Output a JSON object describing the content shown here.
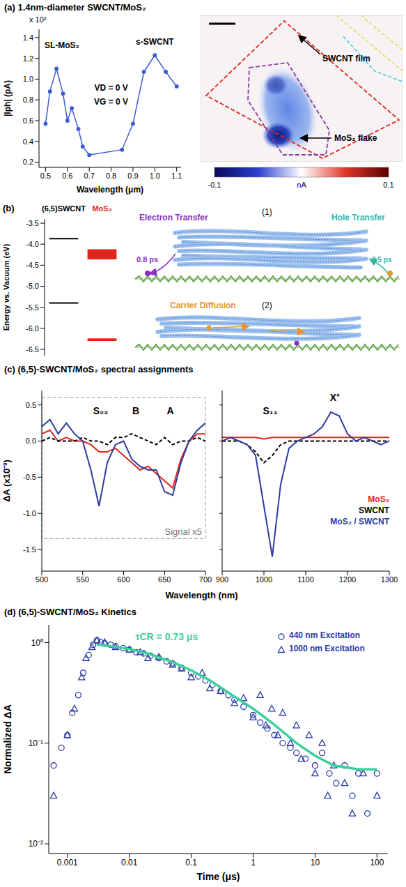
{
  "chart_data": [
    {
      "type": "line",
      "title": "(a) 1.4nm-diameter SWCNT/MoS₂",
      "x_label": "Wavelength (μm)",
      "y_label": "|Iph| (pA)",
      "y_multiplier": "x 10²",
      "x": [
        0.5,
        0.52,
        0.55,
        0.58,
        0.6,
        0.62,
        0.65,
        0.67,
        0.7,
        0.85,
        0.9,
        0.95,
        1.0,
        1.05,
        1.1
      ],
      "values": [
        0.57,
        0.88,
        1.1,
        0.86,
        0.6,
        0.72,
        0.52,
        0.35,
        0.27,
        0.32,
        0.57,
        1.07,
        1.23,
        1.07,
        0.93
      ],
      "color": "#3b5bd6",
      "marker": "circle",
      "xlim": [
        0.47,
        1.12
      ],
      "xticks": [
        0.5,
        0.6,
        0.7,
        0.8,
        0.9,
        {
          "value": 1,
          "label": "1.0"
        },
        1.1
      ],
      "ylim": [
        0.15,
        1.48
      ],
      "yticks": [
        0.2,
        0.4,
        0.6,
        0.8,
        {
          "value": 1,
          "label": "1.0"
        },
        1.2,
        1.4
      ],
      "annotations": [
        {
          "text": "SL-MoS₂",
          "x": 0.575,
          "y": 1.33
        },
        {
          "text": "s-SWCNT",
          "x": 1.0,
          "y": 1.36
        },
        {
          "text": "VD = 0 V",
          "x": 0.8,
          "y": 0.92
        },
        {
          "text": "VG = 0 V",
          "x": 0.8,
          "y": 0.78
        }
      ]
    },
    {
      "type": "energy_levels",
      "title": "(b)",
      "y_label": "Energy vs. Vacuum (eV)",
      "tick_labels": "y",
      "ylim": [
        -6.65,
        -3.4
      ],
      "yticks": [
        -3.5,
        {
          "value": -4,
          "label": "-4.0"
        },
        -4.5,
        {
          "value": -5,
          "label": "-5.0"
        },
        -5.5,
        {
          "value": -6,
          "label": "-6.0"
        },
        -6.5
      ],
      "series": [
        {
          "name": "(6,5)SWCNT",
          "color": "#000000",
          "levels": [
            [
              -3.87,
              -3.87
            ],
            [
              -5.4,
              -5.4
            ]
          ]
        },
        {
          "name": "MoS₂",
          "color": "#e0261b",
          "levels": [
            [
              -4.36,
              -4.12
            ],
            [
              -6.3,
              -6.24
            ]
          ]
        }
      ]
    },
    {
      "type": "line",
      "title": "(c) (6,5)-SWCNT/MoS₂ spectral assignments",
      "x_label": "Wavelength (nm)",
      "y_label": "ΔA (x10⁻³)",
      "x": [
        500,
        510,
        520,
        530,
        540,
        550,
        560,
        570,
        580,
        590,
        600,
        610,
        620,
        630,
        640,
        650,
        660,
        670,
        680,
        690,
        700
      ],
      "series": [
        {
          "color": "#e0261b",
          "values": [
            0.1,
            0.15,
            0.0,
            0.05,
            0.0,
            0.0,
            -0.05,
            -0.15,
            -0.15,
            -0.1,
            -0.2,
            -0.3,
            -0.4,
            -0.35,
            -0.45,
            -0.55,
            -0.65,
            -0.25,
            0.0,
            0.1,
            0.1
          ]
        },
        {
          "color": "#000000",
          "line_style": "dashed",
          "values": [
            0.0,
            0.05,
            0.0,
            0.0,
            0.0,
            0.05,
            0.0,
            0.0,
            -0.05,
            0.05,
            0.05,
            0.1,
            0.05,
            0.0,
            -0.05,
            0.05,
            -0.05,
            0.0,
            0.0,
            0.05,
            0.0
          ]
        },
        {
          "color": "#2c3c9e",
          "values": [
            0.2,
            0.3,
            0.1,
            0.25,
            0.1,
            0.0,
            -0.4,
            -0.9,
            -0.3,
            -0.05,
            0.0,
            -0.25,
            -0.35,
            -0.4,
            -0.4,
            -0.7,
            -0.75,
            -0.3,
            0.0,
            0.15,
            0.25
          ]
        }
      ],
      "xlim": [
        500,
        700
      ],
      "xticks": [
        500,
        550,
        600,
        650,
        700
      ],
      "ylim": [
        -1.8,
        0.7
      ],
      "yticks": [
        -1.5,
        {
          "value": -1,
          "label": "-1.0"
        },
        -0.5,
        {
          "value": 0,
          "label": "0.0"
        },
        0.5
      ],
      "annotations": [
        {
          "text": "S₂₂",
          "x": 572,
          "y": 0.42
        },
        {
          "text": "B",
          "x": 615,
          "y": 0.42
        },
        {
          "text": "A",
          "x": 657,
          "y": 0.42
        }
      ],
      "box": {
        "x": [
          500,
          700
        ],
        "y": [
          -1.35,
          0.6
        ],
        "label": "Signal x5"
      }
    },
    {
      "type": "line",
      "tick_labels": "x",
      "legend": "lower right",
      "x": [
        900,
        920,
        940,
        960,
        980,
        1000,
        1020,
        1040,
        1060,
        1080,
        1100,
        1120,
        1140,
        1160,
        1180,
        1200,
        1220,
        1240,
        1260,
        1280,
        1300
      ],
      "series": [
        {
          "name": "MoS₂",
          "color": "#e0261b",
          "values": [
            0.05,
            0.05,
            0.05,
            0.05,
            0.05,
            0.03,
            0.05,
            0.05,
            0.05,
            0.05,
            0.05,
            0.05,
            0.05,
            0.05,
            0.05,
            0.05,
            0.05,
            0.05,
            0.05,
            0.05,
            0.05
          ]
        },
        {
          "name": "SWCNT",
          "color": "#000000",
          "line_style": "dashed",
          "values": [
            0.0,
            0.0,
            0.0,
            -0.05,
            -0.15,
            -0.3,
            -0.2,
            -0.05,
            0.0,
            0.0,
            0.0,
            0.0,
            0.0,
            0.0,
            0.0,
            0.0,
            0.0,
            0.0,
            0.0,
            0.0,
            0.0
          ]
        },
        {
          "name": "MoS₂ / SWCNT",
          "color": "#2c3c9e",
          "values": [
            0.0,
            0.05,
            0.0,
            -0.05,
            -0.2,
            -0.9,
            -1.6,
            -0.6,
            -0.1,
            0.0,
            0.05,
            0.1,
            0.2,
            0.4,
            0.35,
            0.1,
            0.0,
            0.05,
            0.0,
            -0.05,
            0.0
          ]
        }
      ],
      "xlim": [
        900,
        1300
      ],
      "xticks": [
        900,
        1000,
        1100,
        1200,
        1300
      ],
      "ylim": [
        -1.8,
        0.7
      ],
      "yticks": [
        -1.5,
        {
          "value": -1,
          "label": "-1.0"
        },
        -0.5,
        {
          "value": 0,
          "label": "0.0"
        },
        0.5
      ],
      "annotations": [
        {
          "text": "S₁₁",
          "x": 1015,
          "y": 0.42
        },
        {
          "text": "X⁺",
          "x": 1170,
          "y": 0.6
        }
      ]
    },
    {
      "type": "scatter",
      "title": "(d) (6,5)-SWCNT/MoS₂ Kinetics",
      "x_label": "Time (μs)",
      "y_label": "Normalized ΔA",
      "log": true,
      "legend": "upper right",
      "xlim": [
        0.0005,
        150
      ],
      "xticks": [
        0.001,
        0.01,
        0.1,
        1,
        10,
        100
      ],
      "ylim": [
        0.008,
        1.5
      ],
      "yticks": [
        {
          "value": 0.01,
          "label": "10⁻²"
        },
        {
          "value": 0.1,
          "label": "10⁻¹"
        },
        {
          "value": 1,
          "label": "10⁰"
        }
      ],
      "series": [
        {
          "name": "440 nm Excitation",
          "color": "#2a3aa8",
          "marker": "circle",
          "x": [
            0.0006,
            0.0008,
            0.001,
            0.0012,
            0.0015,
            0.0018,
            0.0022,
            0.0026,
            0.003,
            0.0035,
            0.004,
            0.005,
            0.006,
            0.008,
            0.01,
            0.013,
            0.017,
            0.022,
            0.03,
            0.04,
            0.05,
            0.07,
            0.1,
            0.13,
            0.17,
            0.22,
            0.3,
            0.4,
            0.5,
            0.7,
            1,
            1.3,
            1.7,
            2.2,
            3,
            4,
            5,
            7,
            10,
            13,
            17,
            22,
            30,
            40,
            50,
            70,
            100
          ],
          "values": [
            0.06,
            0.09,
            0.12,
            0.2,
            0.3,
            0.5,
            0.75,
            0.95,
            1.05,
            1.0,
            0.98,
            0.95,
            0.92,
            0.88,
            0.85,
            0.8,
            0.78,
            0.74,
            0.7,
            0.65,
            0.62,
            0.56,
            0.5,
            0.46,
            0.42,
            0.38,
            0.33,
            0.3,
            0.27,
            0.23,
            0.19,
            0.16,
            0.14,
            0.12,
            0.1,
            0.09,
            0.08,
            0.07,
            0.06,
            0.08,
            0.05,
            0.04,
            0.06,
            0.03,
            0.05,
            0.02,
            0.05
          ]
        },
        {
          "name": "1000 nm Excitation",
          "color": "#2a3aa8",
          "marker": "triangle",
          "x": [
            0.0006,
            0.001,
            0.0013,
            0.0017,
            0.002,
            0.0025,
            0.003,
            0.004,
            0.006,
            0.01,
            0.015,
            0.02,
            0.03,
            0.05,
            0.07,
            0.1,
            0.15,
            0.2,
            0.3,
            0.5,
            0.7,
            1,
            1.3,
            1.6,
            2,
            2.5,
            3,
            4,
            5,
            6,
            8,
            10,
            13,
            16,
            20,
            30,
            40,
            60,
            100
          ],
          "values": [
            0.03,
            0.12,
            0.22,
            0.45,
            0.7,
            0.9,
            1.05,
            1.0,
            0.9,
            0.85,
            0.8,
            0.7,
            0.72,
            0.6,
            0.55,
            0.45,
            0.5,
            0.35,
            0.33,
            0.25,
            0.28,
            0.18,
            0.3,
            0.15,
            0.22,
            0.12,
            0.2,
            0.1,
            0.15,
            0.07,
            0.12,
            0.05,
            0.1,
            0.03,
            0.06,
            0.04,
            0.02,
            0.05,
            0.03
          ]
        },
        {
          "type": "line",
          "color": "#3ccf9c",
          "x": [
            0.003,
            0.005,
            0.01,
            0.02,
            0.05,
            0.1,
            0.2,
            0.5,
            1,
            2,
            5,
            10,
            20,
            50,
            100
          ],
          "values": [
            0.95,
            0.92,
            0.86,
            0.78,
            0.64,
            0.53,
            0.42,
            0.29,
            0.22,
            0.16,
            0.1,
            0.075,
            0.06,
            0.055,
            0.055
          ]
        }
      ],
      "annotations": [
        {
          "text": "τCR = 0.73 μs",
          "x": 0.04,
          "y": 1.15,
          "color": "#3ccf9c"
        }
      ]
    }
  ],
  "photocurrent_map": {
    "film_label": "SWCNT film",
    "flake_label": "MoS₂ flake",
    "colorbar": {
      "range": [
        -0.1,
        0.1
      ],
      "ticks": [
        -0.1,
        0.1
      ],
      "label": "nA"
    }
  },
  "schematic": {
    "electron_transfer": "Electron Transfer",
    "hole_transfer": "Hole Transfer",
    "electron_time": "0.8 ps",
    "hole_time": "0.5 ps",
    "carrier_diffusion": "Carrier Diffusion",
    "case_1": "(1)",
    "case_2": "(2)"
  }
}
